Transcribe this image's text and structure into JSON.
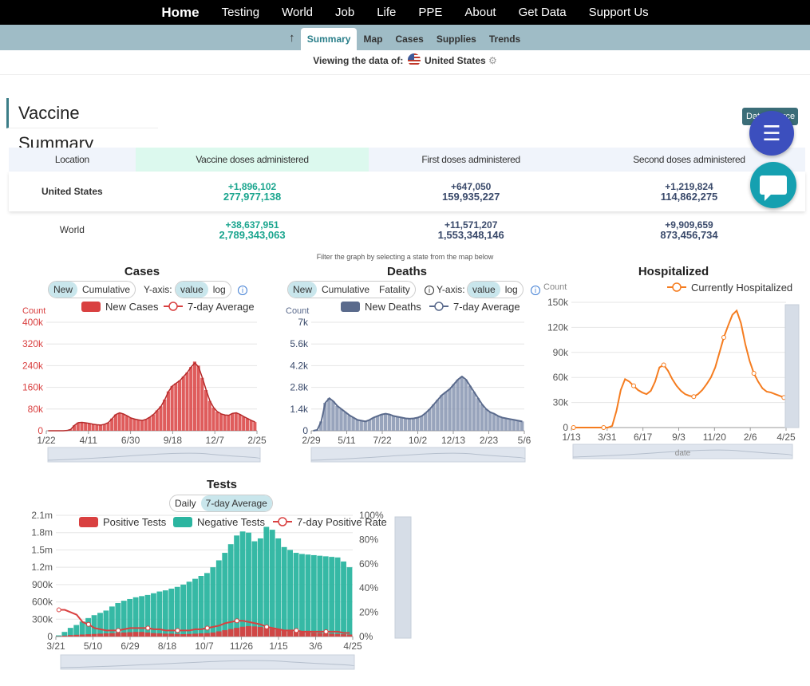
{
  "nav": {
    "home": "Home",
    "items": [
      "Testing",
      "World",
      "Job",
      "Life",
      "PPE",
      "About",
      "Get Data",
      "Support Us"
    ]
  },
  "subnav": {
    "up_icon": "arrow-up-icon",
    "tabs": [
      "Summary",
      "Map",
      "Cases",
      "Supplies",
      "Trends"
    ],
    "active": "Summary"
  },
  "viewing": {
    "prefix": "Viewing the data of:",
    "location": "United States"
  },
  "page_title": "Vaccine Summary",
  "data_source_label": "Data Source",
  "table": {
    "headers": [
      "Location",
      "Vaccine doses administered",
      "First doses administered",
      "Second doses administered"
    ],
    "rows": [
      {
        "location": "United States",
        "vaccine_delta": "+1,896,102",
        "vaccine_total": "277,977,138",
        "first_delta": "+647,050",
        "first_total": "159,935,227",
        "second_delta": "+1,219,824",
        "second_total": "114,862,275"
      },
      {
        "location": "World",
        "vaccine_delta": "+38,637,951",
        "vaccine_total": "2,789,343,063",
        "first_delta": "+11,571,207",
        "first_total": "1,553,348,146",
        "second_delta": "+9,909,659",
        "second_total": "873,456,734"
      }
    ]
  },
  "filter_text": "Filter the graph by selecting a state from the map below",
  "colors": {
    "cases": "#d94040",
    "deaths": "#5a6a8c",
    "hosp": "#f57c1f",
    "negative": "#2bb5a0",
    "accent": "#3b7d87"
  },
  "cases_panel": {
    "title": "Cases",
    "toggle": [
      "New",
      "Cumulative"
    ],
    "toggle_active": "New",
    "yaxis_label": "Y-axis:",
    "scale": [
      "value",
      "log"
    ],
    "scale_active": "value",
    "legend": [
      "New Cases",
      "7-day Average"
    ],
    "count_label": "Count"
  },
  "deaths_panel": {
    "title": "Deaths",
    "toggle": [
      "New",
      "Cumulative",
      "Fatality"
    ],
    "toggle_active": "New",
    "yaxis_label": "Y-axis:",
    "scale": [
      "value",
      "log"
    ],
    "scale_active": "value",
    "legend": [
      "New Deaths",
      "7-day Average"
    ],
    "count_label": "Count"
  },
  "hosp_panel": {
    "title": "Hospitalized",
    "legend": [
      "Currently Hospitalized"
    ],
    "count_label": "Count",
    "zoom_label": "date"
  },
  "tests_panel": {
    "title": "Tests",
    "toggle": [
      "Daily",
      "7-day Average"
    ],
    "toggle_active": "7-day Average",
    "legend": [
      "Positive Tests",
      "Negative Tests",
      "7-day Positive Rate"
    ]
  },
  "chart_data": [
    {
      "type": "bar",
      "title": "Cases",
      "ylabel": "Count",
      "x_ticks": [
        "1/22",
        "4/11",
        "6/30",
        "9/18",
        "12/7",
        "2/25"
      ],
      "y_ticks": [
        "0",
        "80k",
        "160k",
        "240k",
        "320k",
        "400k"
      ],
      "ylim": [
        0,
        400000
      ],
      "series": [
        {
          "name": "New Cases",
          "values": [
            0,
            0,
            0,
            0,
            0,
            1000,
            5000,
            20000,
            30000,
            31000,
            29000,
            27000,
            24000,
            22000,
            21000,
            24000,
            30000,
            45000,
            60000,
            66000,
            62000,
            55000,
            47000,
            43000,
            40000,
            38000,
            42000,
            50000,
            60000,
            75000,
            90000,
            115000,
            145000,
            165000,
            175000,
            185000,
            200000,
            215000,
            235000,
            255000,
            240000,
            195000,
            150000,
            110000,
            85000,
            70000,
            62000,
            58000,
            57000,
            64000,
            66000,
            60000,
            52000,
            45000,
            38000,
            32000
          ]
        },
        {
          "name": "7-day Average",
          "values": [
            0,
            0,
            0,
            0,
            0,
            1000,
            5000,
            20000,
            30000,
            31000,
            29000,
            27000,
            24000,
            22000,
            21000,
            24000,
            30000,
            45000,
            60000,
            66000,
            62000,
            55000,
            47000,
            43000,
            40000,
            38000,
            42000,
            50000,
            60000,
            75000,
            90000,
            115000,
            145000,
            165000,
            175000,
            185000,
            200000,
            215000,
            235000,
            250000,
            235000,
            195000,
            150000,
            110000,
            85000,
            70000,
            62000,
            58000,
            57000,
            64000,
            66000,
            60000,
            52000,
            45000,
            38000,
            32000
          ]
        }
      ]
    },
    {
      "type": "bar",
      "title": "Deaths",
      "ylabel": "Count",
      "x_ticks": [
        "2/29",
        "5/11",
        "7/22",
        "10/2",
        "12/13",
        "2/23",
        "5/6"
      ],
      "y_ticks": [
        "0",
        "1.4k",
        "2.8k",
        "4.2k",
        "5.6k",
        "7k"
      ],
      "ylim": [
        0,
        7000
      ],
      "series": [
        {
          "name": "New Deaths",
          "values": [
            0,
            50,
            600,
            1800,
            2100,
            1900,
            1600,
            1400,
            1200,
            1000,
            850,
            700,
            650,
            600,
            700,
            850,
            950,
            1050,
            1100,
            1050,
            950,
            900,
            850,
            800,
            780,
            800,
            850,
            950,
            1150,
            1400,
            1700,
            2000,
            2300,
            2500,
            2700,
            3000,
            3300,
            3500,
            3300,
            2900,
            2500,
            2100,
            1700,
            1400,
            1200,
            1100,
            950,
            850,
            800,
            750,
            700,
            650,
            600
          ]
        },
        {
          "name": "7-day Average",
          "values": [
            0,
            50,
            600,
            1800,
            2100,
            1900,
            1600,
            1400,
            1200,
            1000,
            850,
            700,
            650,
            600,
            700,
            850,
            950,
            1050,
            1100,
            1050,
            950,
            900,
            850,
            800,
            780,
            800,
            850,
            950,
            1150,
            1400,
            1700,
            2000,
            2300,
            2500,
            2700,
            3000,
            3300,
            3500,
            3300,
            2900,
            2500,
            2100,
            1700,
            1400,
            1200,
            1100,
            950,
            850,
            800,
            750,
            700,
            650,
            600
          ]
        }
      ]
    },
    {
      "type": "line",
      "title": "Hospitalized",
      "ylabel": "Count",
      "x_ticks": [
        "1/13",
        "3/31",
        "6/17",
        "9/3",
        "11/20",
        "2/6",
        "4/25"
      ],
      "y_ticks": [
        "0",
        "30k",
        "60k",
        "90k",
        "120k",
        "150k"
      ],
      "ylim": [
        0,
        150000
      ],
      "series": [
        {
          "name": "Currently Hospitalized",
          "values": [
            0,
            0,
            0,
            0,
            0,
            0,
            0,
            0,
            0,
            2000,
            20000,
            45000,
            58000,
            55000,
            50000,
            45000,
            42000,
            40000,
            44000,
            55000,
            72000,
            75000,
            68000,
            58000,
            50000,
            44000,
            40000,
            38000,
            37000,
            40000,
            45000,
            52000,
            60000,
            72000,
            90000,
            108000,
            122000,
            135000,
            140000,
            125000,
            100000,
            80000,
            65000,
            55000,
            47000,
            43000,
            42000,
            40000,
            38000,
            36000
          ]
        }
      ]
    },
    {
      "type": "bar",
      "title": "Tests",
      "x_ticks": [
        "3/21",
        "5/10",
        "6/29",
        "8/18",
        "10/7",
        "11/26",
        "1/15",
        "3/6",
        "4/25"
      ],
      "y_ticks": [
        "0",
        "300k",
        "600k",
        "900k",
        "1.2m",
        "1.5m",
        "1.8m",
        "2.1m"
      ],
      "ylim": [
        0,
        2100000
      ],
      "y2_ticks": [
        "0%",
        "20%",
        "40%",
        "60%",
        "80%",
        "100%"
      ],
      "y2lim": [
        0,
        100
      ],
      "series": [
        {
          "name": "Positive Tests",
          "values": [
            5000,
            15000,
            25000,
            30000,
            35000,
            40000,
            45000,
            50000,
            55000,
            60000,
            65000,
            70000,
            75000,
            80000,
            80000,
            70000,
            60000,
            55000,
            50000,
            50000,
            45000,
            42000,
            45000,
            50000,
            55000,
            60000,
            70000,
            90000,
            110000,
            130000,
            150000,
            170000,
            180000,
            175000,
            165000,
            150000,
            135000,
            120000,
            105000,
            95000,
            85000,
            75000,
            70000,
            65000,
            60000,
            55000,
            50000,
            45000,
            40000,
            35000
          ]
        },
        {
          "name": "Negative Tests",
          "values": [
            20000,
            80000,
            150000,
            200000,
            260000,
            320000,
            370000,
            410000,
            450000,
            520000,
            580000,
            620000,
            650000,
            680000,
            700000,
            720000,
            750000,
            780000,
            800000,
            830000,
            860000,
            900000,
            950000,
            1000000,
            1050000,
            1100000,
            1200000,
            1320000,
            1450000,
            1600000,
            1750000,
            1820000,
            1800000,
            1650000,
            1700000,
            1900000,
            1850000,
            1700000,
            1550000,
            1500000,
            1450000,
            1430000,
            1420000,
            1410000,
            1400000,
            1390000,
            1380000,
            1370000,
            1300000,
            1200000
          ]
        },
        {
          "name": "7-day Positive Rate",
          "values": [
            22,
            22,
            20,
            18,
            12,
            10,
            7,
            6,
            5,
            5,
            5,
            6,
            7,
            7,
            7,
            7,
            6,
            6,
            5,
            5,
            5,
            5,
            5,
            6,
            6,
            7,
            8,
            9,
            11,
            12,
            13,
            13,
            12,
            11,
            10,
            8,
            7,
            6,
            5,
            5,
            5,
            4,
            4,
            4,
            4,
            4,
            4,
            4,
            3,
            3
          ]
        }
      ]
    }
  ]
}
